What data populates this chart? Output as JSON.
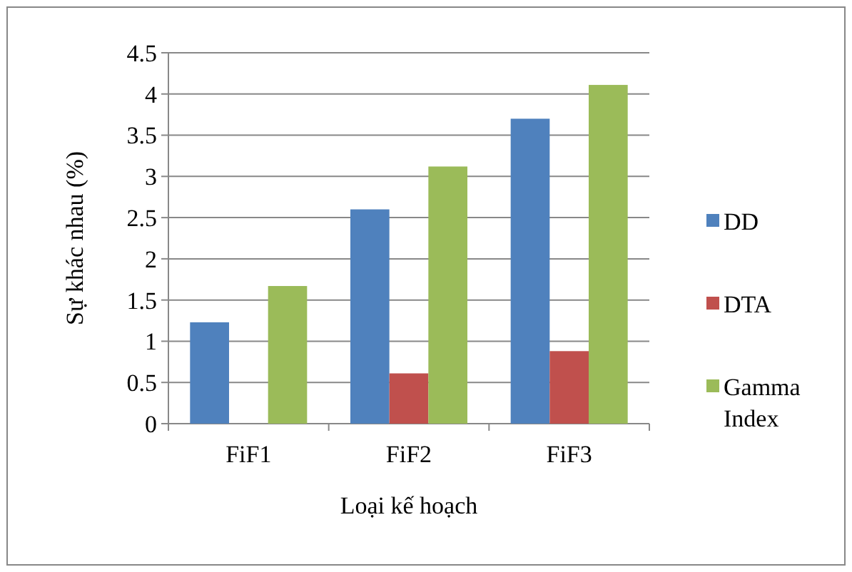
{
  "chart_data": {
    "type": "bar",
    "xlabel": "Loại kế hoạch",
    "ylabel": "Sự khác nhau (%)",
    "categories": [
      "FiF1",
      "FiF2",
      "FiF3"
    ],
    "series": [
      {
        "name": "DD",
        "color": "#4f81bd",
        "values": [
          1.23,
          2.6,
          3.7
        ]
      },
      {
        "name": "DTA",
        "color": "#c0504d",
        "values": [
          0,
          0.61,
          0.88
        ]
      },
      {
        "name": "Gamma Index",
        "color": "#9bbb59",
        "values": [
          1.67,
          3.12,
          4.11
        ]
      }
    ],
    "ylim": [
      0,
      4.5
    ],
    "yticks": [
      0,
      0.5,
      1,
      1.5,
      2,
      2.5,
      3,
      3.5,
      4,
      4.5
    ],
    "grid": "y",
    "legend": "right"
  }
}
